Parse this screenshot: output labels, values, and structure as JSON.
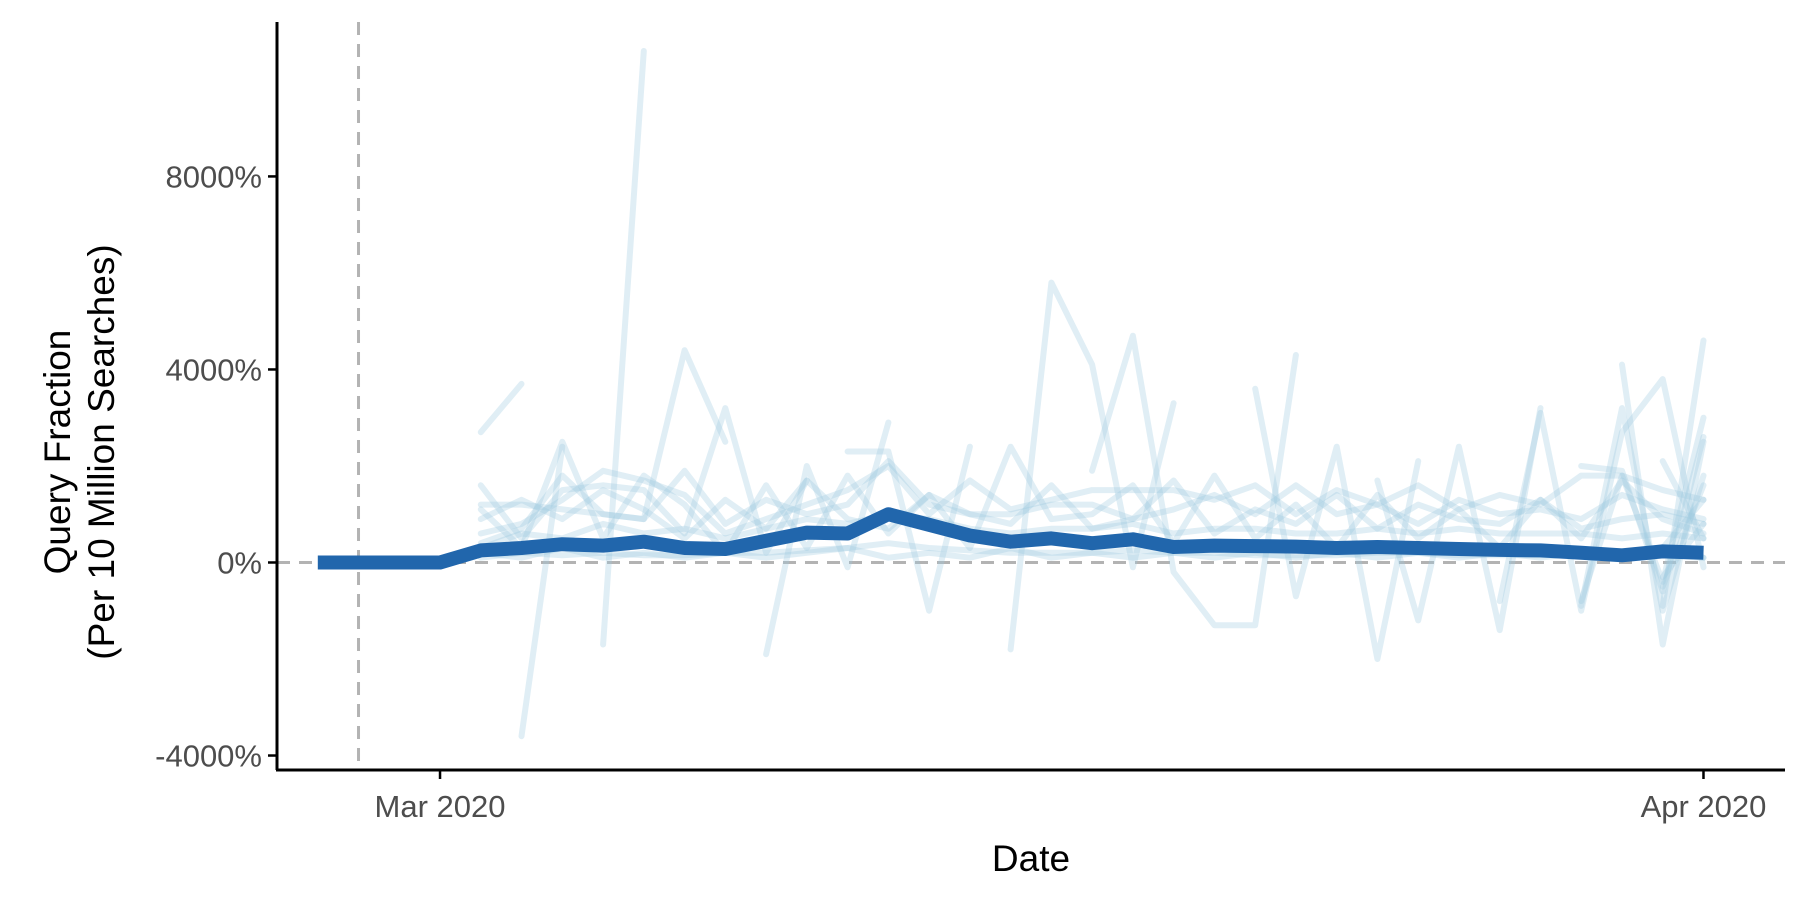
{
  "chart_data": {
    "type": "line",
    "xlabel": "Date",
    "ylabel_lines": [
      "Query Fraction",
      "(Per 10 Million Searches)"
    ],
    "x_tick_labels": [
      {
        "date": "2020-03-01",
        "label": "Mar 2020"
      },
      {
        "date": "2020-04-01",
        "label": "Apr 2020"
      }
    ],
    "y_tick_labels": [
      {
        "value": -4000,
        "label": "-4000%"
      },
      {
        "value": 0,
        "label": "0%"
      },
      {
        "value": 4000,
        "label": "4000%"
      },
      {
        "value": 8000,
        "label": "8000%"
      }
    ],
    "xlim": [
      "2020-02-26",
      "2020-04-03"
    ],
    "ylim": [
      -4300,
      11200
    ],
    "grid": false,
    "reference_lines": {
      "vertical_date": "2020-02-28",
      "horizontal_value": 0
    },
    "colors": {
      "average": "#2166ac",
      "individual": "#9ecae1",
      "reference": "#b3b3b3"
    },
    "x": [
      "2020-02-27",
      "2020-02-28",
      "2020-02-29",
      "2020-03-01",
      "2020-03-02",
      "2020-03-03",
      "2020-03-04",
      "2020-03-05",
      "2020-03-06",
      "2020-03-07",
      "2020-03-08",
      "2020-03-09",
      "2020-03-10",
      "2020-03-11",
      "2020-03-12",
      "2020-03-13",
      "2020-03-14",
      "2020-03-15",
      "2020-03-16",
      "2020-03-17",
      "2020-03-18",
      "2020-03-19",
      "2020-03-20",
      "2020-03-21",
      "2020-03-22",
      "2020-03-23",
      "2020-03-24",
      "2020-03-25",
      "2020-03-26",
      "2020-03-27",
      "2020-03-28",
      "2020-03-29",
      "2020-03-30",
      "2020-03-31",
      "2020-04-01"
    ],
    "average_series": [
      0,
      0,
      0,
      0,
      250,
      300,
      380,
      350,
      430,
      300,
      280,
      450,
      620,
      600,
      1000,
      780,
      560,
      430,
      500,
      400,
      480,
      320,
      350,
      340,
      330,
      300,
      320,
      300,
      280,
      260,
      250,
      200,
      150,
      230,
      200
    ],
    "individual_series": [
      [
        null,
        null,
        null,
        null,
        2700,
        3700,
        null,
        null,
        null,
        null,
        null,
        null,
        null,
        null,
        null,
        null,
        null,
        null,
        null,
        null,
        null,
        null,
        null,
        null,
        null,
        null,
        null,
        null,
        null,
        null,
        null,
        null,
        null,
        null,
        null
      ],
      [
        null,
        null,
        null,
        null,
        null,
        -3600,
        2400,
        null,
        null,
        null,
        null,
        null,
        null,
        null,
        null,
        null,
        null,
        null,
        null,
        null,
        null,
        null,
        null,
        null,
        null,
        null,
        null,
        null,
        null,
        null,
        null,
        null,
        null,
        null,
        null
      ],
      [
        null,
        null,
        null,
        null,
        null,
        null,
        null,
        -1700,
        10600,
        null,
        null,
        null,
        null,
        null,
        null,
        null,
        null,
        null,
        null,
        null,
        null,
        null,
        null,
        null,
        null,
        null,
        null,
        null,
        null,
        null,
        null,
        null,
        null,
        null,
        null
      ],
      [
        null,
        null,
        null,
        null,
        1200,
        1200,
        1100,
        1000,
        900,
        4400,
        2500,
        null,
        null,
        null,
        null,
        null,
        null,
        null,
        null,
        null,
        null,
        null,
        null,
        null,
        null,
        null,
        null,
        null,
        null,
        null,
        null,
        null,
        null,
        null,
        null
      ],
      [
        null,
        null,
        null,
        null,
        1600,
        500,
        1500,
        1600,
        1500,
        600,
        3200,
        200,
        1700,
        null,
        null,
        null,
        null,
        null,
        null,
        null,
        null,
        null,
        null,
        null,
        null,
        null,
        null,
        null,
        null,
        null,
        null,
        null,
        null,
        null,
        null
      ],
      [
        null,
        null,
        null,
        null,
        null,
        null,
        null,
        null,
        null,
        null,
        null,
        -1900,
        2000,
        -100,
        2900,
        null,
        null,
        null,
        null,
        null,
        null,
        null,
        null,
        null,
        null,
        null,
        null,
        null,
        null,
        null,
        null,
        null,
        null,
        null,
        null
      ],
      [
        null,
        null,
        null,
        null,
        null,
        null,
        null,
        null,
        null,
        null,
        null,
        null,
        null,
        2300,
        2300,
        -1000,
        2400,
        null,
        null,
        null,
        null,
        null,
        null,
        null,
        null,
        null,
        null,
        null,
        null,
        null,
        null,
        null,
        null,
        null,
        null
      ],
      [
        null,
        null,
        null,
        null,
        null,
        null,
        null,
        null,
        null,
        null,
        null,
        null,
        null,
        null,
        null,
        null,
        null,
        -1800,
        5800,
        4100,
        -100,
        3300,
        null,
        null,
        null,
        null,
        null,
        null,
        null,
        null,
        null,
        null,
        null,
        null,
        null
      ],
      [
        null,
        null,
        null,
        null,
        null,
        null,
        null,
        null,
        null,
        null,
        null,
        null,
        null,
        null,
        null,
        null,
        null,
        null,
        null,
        1900,
        4700,
        -200,
        -1300,
        -1300,
        4300,
        null,
        null,
        null,
        null,
        null,
        null,
        null,
        null,
        null,
        null
      ],
      [
        null,
        null,
        null,
        null,
        null,
        null,
        null,
        null,
        null,
        null,
        null,
        null,
        null,
        null,
        null,
        null,
        null,
        null,
        null,
        null,
        null,
        null,
        null,
        3600,
        -700,
        2400,
        -2000,
        2100,
        null,
        null,
        null,
        null,
        null,
        null,
        null
      ],
      [
        null,
        null,
        null,
        null,
        null,
        null,
        null,
        null,
        null,
        null,
        null,
        null,
        null,
        null,
        null,
        null,
        null,
        null,
        null,
        null,
        null,
        null,
        null,
        null,
        null,
        null,
        1700,
        -1200,
        2400,
        -1400,
        3200,
        null,
        null,
        null,
        null
      ],
      [
        null,
        null,
        null,
        null,
        null,
        null,
        null,
        null,
        null,
        null,
        null,
        null,
        null,
        null,
        null,
        null,
        null,
        null,
        null,
        null,
        null,
        null,
        null,
        null,
        null,
        null,
        null,
        null,
        null,
        -800,
        3100,
        -1000,
        2700,
        3800,
        -100
      ],
      [
        null,
        null,
        null,
        null,
        null,
        null,
        null,
        null,
        null,
        null,
        null,
        null,
        null,
        null,
        null,
        null,
        null,
        null,
        null,
        null,
        null,
        null,
        null,
        null,
        null,
        null,
        null,
        null,
        null,
        null,
        null,
        null,
        4100,
        -1700,
        2500
      ],
      [
        null,
        null,
        null,
        null,
        null,
        null,
        null,
        null,
        null,
        null,
        null,
        null,
        null,
        null,
        null,
        null,
        null,
        null,
        null,
        null,
        null,
        null,
        null,
        null,
        null,
        null,
        null,
        null,
        null,
        null,
        null,
        null,
        null,
        -900,
        4600
      ],
      [
        null,
        null,
        null,
        null,
        null,
        null,
        null,
        null,
        null,
        null,
        null,
        null,
        null,
        null,
        null,
        null,
        null,
        null,
        null,
        null,
        null,
        null,
        null,
        null,
        null,
        null,
        null,
        null,
        null,
        null,
        null,
        -900,
        3200,
        -1000,
        1800
      ],
      [
        null,
        null,
        null,
        null,
        null,
        null,
        null,
        null,
        null,
        null,
        null,
        null,
        null,
        null,
        null,
        null,
        null,
        null,
        null,
        null,
        null,
        null,
        null,
        null,
        null,
        null,
        null,
        null,
        null,
        null,
        null,
        -800,
        1800,
        -400,
        3000
      ],
      [
        null,
        null,
        null,
        null,
        null,
        null,
        null,
        null,
        null,
        null,
        null,
        null,
        null,
        null,
        null,
        null,
        null,
        null,
        null,
        null,
        null,
        null,
        null,
        null,
        null,
        null,
        null,
        null,
        null,
        null,
        null,
        2000,
        1900,
        -600,
        2600
      ],
      [
        null,
        null,
        null,
        null,
        null,
        null,
        null,
        null,
        null,
        null,
        null,
        null,
        null,
        null,
        null,
        null,
        null,
        null,
        null,
        null,
        null,
        null,
        null,
        null,
        null,
        null,
        null,
        null,
        null,
        null,
        null,
        null,
        null,
        -500,
        1600
      ],
      [
        null,
        null,
        null,
        null,
        null,
        null,
        null,
        null,
        null,
        null,
        null,
        null,
        null,
        null,
        null,
        null,
        null,
        null,
        null,
        null,
        null,
        null,
        null,
        null,
        null,
        null,
        null,
        null,
        null,
        null,
        null,
        null,
        null,
        2100,
        500
      ],
      [
        null,
        null,
        null,
        null,
        null,
        null,
        null,
        null,
        null,
        null,
        null,
        null,
        null,
        null,
        null,
        null,
        null,
        null,
        null,
        null,
        null,
        null,
        null,
        null,
        null,
        null,
        null,
        null,
        null,
        null,
        null,
        null,
        null,
        -300,
        800
      ],
      [
        null,
        null,
        null,
        null,
        null,
        null,
        null,
        null,
        null,
        null,
        null,
        null,
        null,
        null,
        null,
        null,
        null,
        null,
        null,
        null,
        null,
        null,
        null,
        null,
        null,
        null,
        null,
        null,
        null,
        null,
        null,
        null,
        null,
        300,
        1300
      ],
      [
        null,
        null,
        null,
        null,
        600,
        800,
        1300,
        1900,
        1700,
        1400,
        600,
        900,
        1200,
        1500,
        2000,
        1000,
        1700,
        1100,
        1300,
        1500,
        1500,
        1500,
        1300,
        1600,
        1000,
        1500,
        1200,
        1600,
        1100,
        1400,
        1200,
        1800,
        1800,
        1500,
        1300
      ],
      [
        null,
        null,
        null,
        null,
        300,
        600,
        500,
        800,
        600,
        700,
        500,
        700,
        900,
        800,
        1000,
        900,
        700,
        600,
        700,
        700,
        800,
        600,
        700,
        700,
        600,
        600,
        700,
        600,
        700,
        600,
        600,
        600,
        500,
        600,
        500
      ],
      [
        null,
        null,
        null,
        null,
        100,
        200,
        150,
        200,
        150,
        150,
        200,
        200,
        250,
        300,
        400,
        300,
        250,
        200,
        200,
        200,
        250,
        200,
        200,
        150,
        150,
        150,
        200,
        200,
        150,
        150,
        150,
        150,
        100,
        150,
        100
      ],
      [
        null,
        null,
        null,
        null,
        1100,
        300,
        2500,
        500,
        1800,
        1200,
        200,
        1600,
        300,
        1800,
        600,
        1400,
        300,
        2400,
        900,
        1000,
        1600,
        400,
        1800,
        500,
        1200,
        300,
        1400,
        500,
        1100,
        300,
        1300,
        500,
        1700,
        900,
        600
      ],
      [
        null,
        null,
        null,
        null,
        900,
        1300,
        900,
        1500,
        1100,
        500,
        1300,
        700,
        1700,
        900,
        700,
        1400,
        1000,
        800,
        1600,
        700,
        900,
        1700,
        600,
        1100,
        800,
        1400,
        700,
        1200,
        900,
        800,
        1300,
        700,
        900,
        1000,
        800
      ],
      [
        null,
        null,
        null,
        null,
        400,
        700,
        1800,
        1000,
        900,
        1900,
        800,
        1300,
        1000,
        1200,
        2100,
        1200,
        1000,
        1000,
        1200,
        1200,
        900,
        1100,
        1400,
        1000,
        1600,
        1000,
        1200,
        800,
        1300,
        1000,
        1100,
        900,
        1400,
        1100,
        900
      ],
      [
        null,
        null,
        null,
        null,
        200,
        100,
        300,
        100,
        200,
        100,
        200,
        100,
        200,
        300,
        100,
        200,
        100,
        300,
        100,
        200,
        100,
        200,
        100,
        200,
        100,
        200,
        100,
        200,
        100,
        200,
        100,
        200,
        100,
        200,
        100
      ]
    ]
  }
}
